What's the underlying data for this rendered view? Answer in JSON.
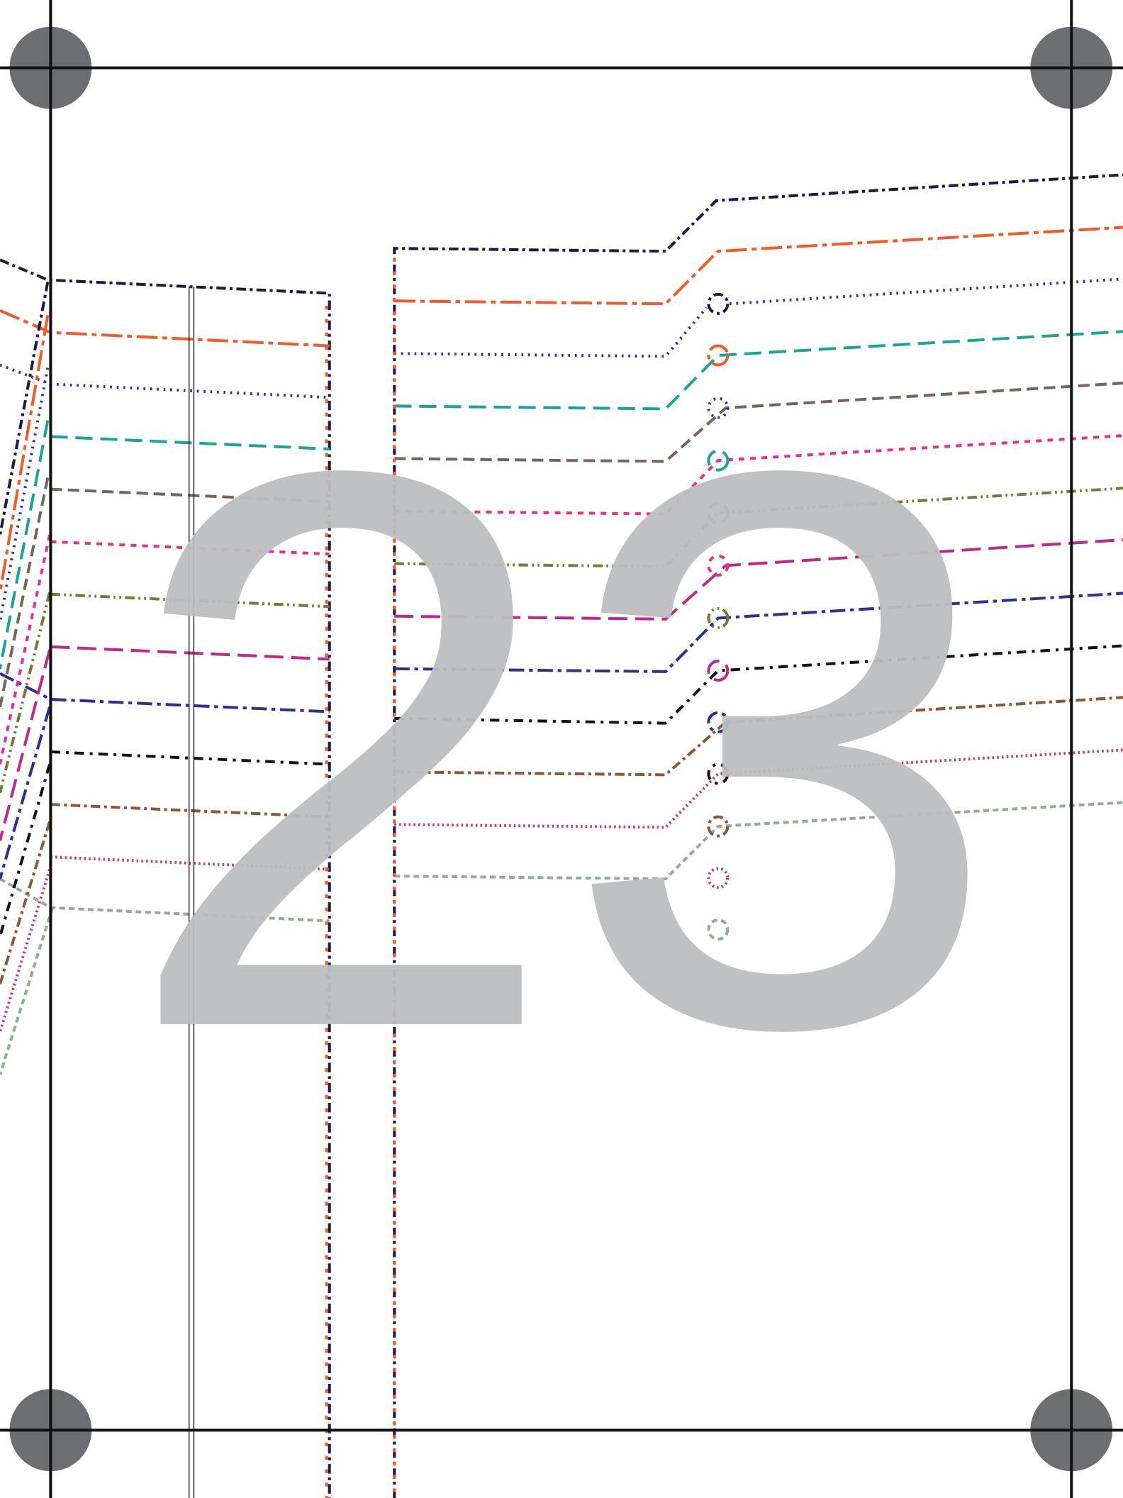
{
  "page": {
    "number": "23"
  }
}
